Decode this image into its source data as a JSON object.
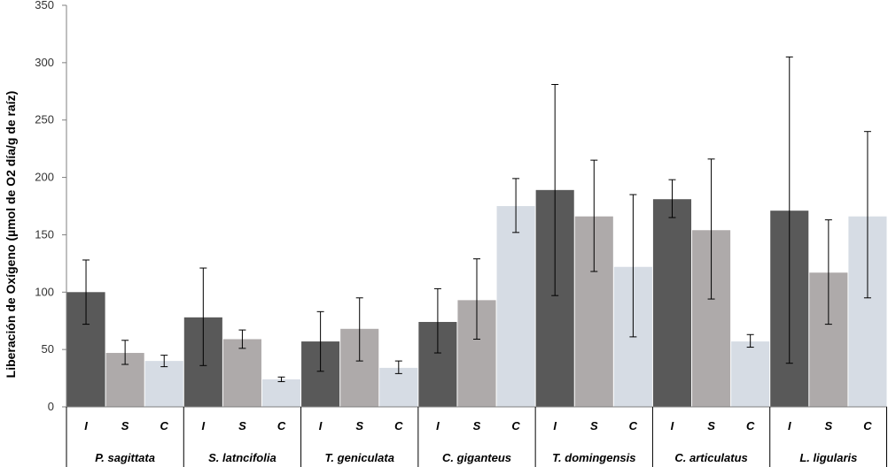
{
  "chart_data": {
    "type": "bar",
    "title": "",
    "xlabel": "",
    "ylabel": "Liberación de Oxígeno (µmol de O2 día/g de raíz)",
    "ylim": [
      0,
      350
    ],
    "yticks": [
      0,
      50,
      100,
      150,
      200,
      250,
      300,
      350
    ],
    "grid": false,
    "legend": "none",
    "groups": [
      "P. sagittata",
      "S. latncifolia",
      "T. geniculata",
      "C. giganteus",
      "T. domingensis",
      "C. articulatus",
      "L. ligularis"
    ],
    "series": [
      {
        "name": "I",
        "color": "#595959",
        "values": [
          100,
          78,
          57,
          74,
          189,
          181,
          171
        ],
        "err_low": [
          72,
          36,
          31,
          47,
          97,
          165,
          38
        ],
        "err_high": [
          128,
          121,
          83,
          103,
          281,
          198,
          305
        ]
      },
      {
        "name": "S",
        "color": "#aeaaaa",
        "values": [
          47,
          59,
          68,
          93,
          166,
          154,
          117
        ],
        "err_low": [
          37,
          51,
          40,
          59,
          118,
          94,
          72
        ],
        "err_high": [
          58,
          67,
          95,
          129,
          215,
          216,
          163
        ]
      },
      {
        "name": "C",
        "color": "#d6dce4",
        "values": [
          40,
          24,
          34,
          175,
          122,
          57,
          166
        ],
        "err_low": [
          35,
          22,
          29,
          152,
          61,
          52,
          95
        ],
        "err_high": [
          45,
          26,
          40,
          199,
          185,
          63,
          240
        ]
      }
    ]
  }
}
